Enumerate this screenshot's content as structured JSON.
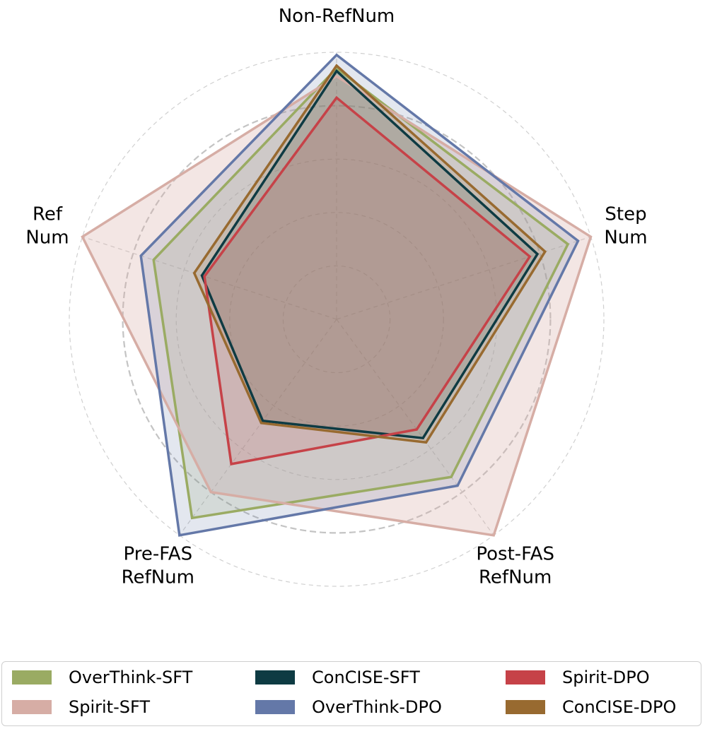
{
  "chart_data": {
    "type": "radar",
    "axes": [
      {
        "label_lines": [
          "Non-RefNum"
        ]
      },
      {
        "label_lines": [
          "Step",
          "Num"
        ]
      },
      {
        "label_lines": [
          "Post-FAS",
          "RefNum"
        ]
      },
      {
        "label_lines": [
          "Pre-FAS",
          "RefNum"
        ]
      },
      {
        "label_lines": [
          "Ref",
          "Num"
        ]
      }
    ],
    "rmax": 1.0,
    "grid_levels": [
      0.2,
      0.4,
      0.6,
      0.8,
      1.0
    ],
    "emphasized_level": 0.8,
    "series": [
      {
        "name": "OverThink-SFT",
        "color": "#9aab63",
        "fill_opacity": 0.18,
        "values": [
          0.94,
          0.91,
          0.73,
          0.92,
          0.72
        ]
      },
      {
        "name": "Spirit-SFT",
        "color": "#d6ada5",
        "fill_opacity": 0.3,
        "values": [
          0.91,
          1.0,
          1.0,
          0.8,
          1.0
        ]
      },
      {
        "name": "ConCISE-SFT",
        "color": "#0e3b43",
        "fill_opacity": 0.15,
        "values": [
          0.93,
          0.79,
          0.55,
          0.47,
          0.53
        ]
      },
      {
        "name": "OverThink-DPO",
        "color": "#6478a8",
        "fill_opacity": 0.18,
        "values": [
          0.99,
          0.95,
          0.77,
          1.0,
          0.77
        ]
      },
      {
        "name": "Spirit-DPO",
        "color": "#c64248",
        "fill_opacity": 0.15,
        "values": [
          0.83,
          0.76,
          0.51,
          0.67,
          0.52
        ]
      },
      {
        "name": "ConCISE-DPO",
        "color": "#986a30",
        "fill_opacity": 0.15,
        "values": [
          0.95,
          0.82,
          0.57,
          0.48,
          0.56
        ]
      }
    ]
  },
  "legend": {
    "items": [
      {
        "label": "OverThink-SFT",
        "color": "#9aab63"
      },
      {
        "label": "ConCISE-SFT",
        "color": "#0e3b43"
      },
      {
        "label": "Spirit-DPO",
        "color": "#c64248"
      },
      {
        "label": "Spirit-SFT",
        "color": "#d6ada5"
      },
      {
        "label": "OverThink-DPO",
        "color": "#6478a8"
      },
      {
        "label": "ConCISE-DPO",
        "color": "#986a30"
      }
    ]
  }
}
